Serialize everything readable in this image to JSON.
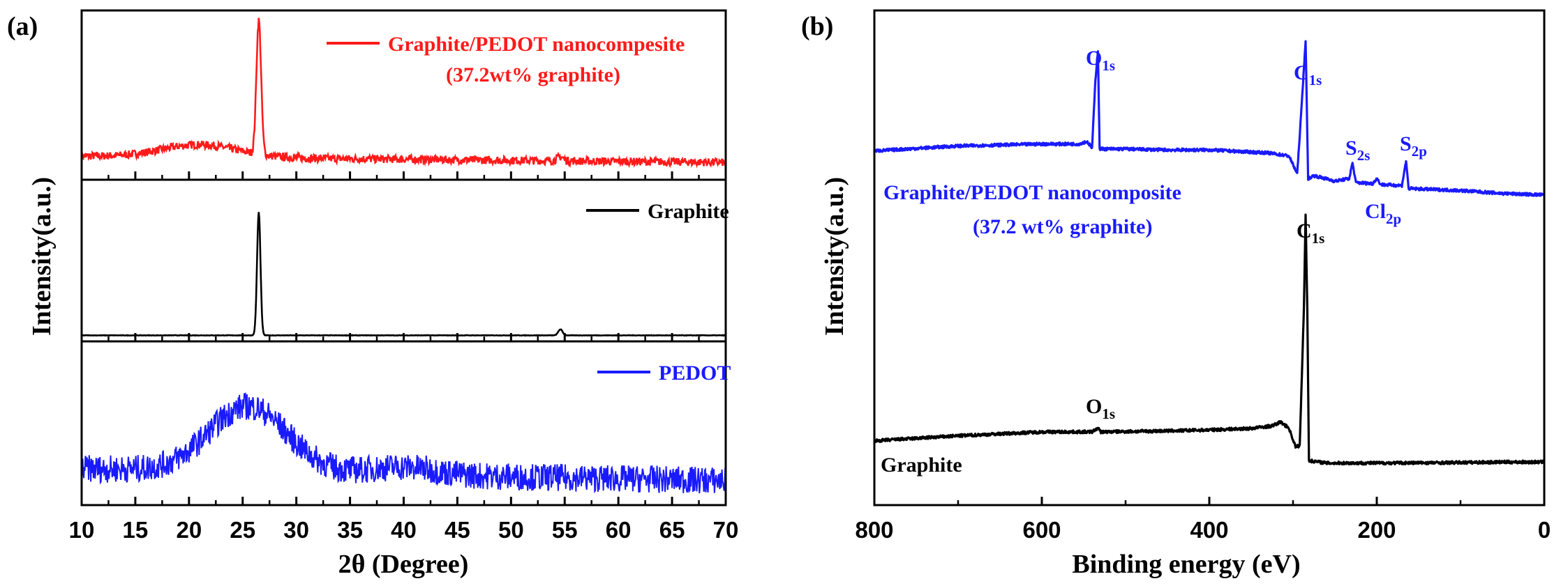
{
  "chart_data": [
    {
      "panel_label": "(a)",
      "type": "line",
      "xlabel": "2θ (Degree)",
      "ylabel": "Intensity(a.u.)",
      "xlim": [
        10,
        70
      ],
      "xticks": [
        10,
        15,
        20,
        25,
        30,
        35,
        40,
        45,
        50,
        55,
        60,
        65,
        70
      ],
      "stacked_subplots": 3,
      "series": [
        {
          "name": "Graphite/PEDOT nanocompesite",
          "legend_line2": "(37.2wt% graphite)",
          "color": "#ff1a1a",
          "subplot": 0,
          "baseline": 0.15,
          "slope": -0.04,
          "noise": 0.025,
          "peaks": [
            [
              21,
              0.08,
              3.5
            ],
            [
              26.5,
              0.85,
              0.22
            ],
            [
              54.6,
              0.025,
              0.3
            ]
          ],
          "x": [
            10,
            20,
            25,
            26.5,
            28,
            35,
            54.6,
            70
          ],
          "y": [
            0.16,
            0.2,
            0.22,
            1.0,
            0.15,
            0.14,
            0.14,
            0.12
          ]
        },
        {
          "name": "Graphite",
          "color": "#000000",
          "subplot": 1,
          "baseline": 0.04,
          "slope": 0,
          "noise": 0.0015,
          "peaks": [
            [
              26.5,
              0.82,
              0.16
            ],
            [
              54.6,
              0.04,
              0.2
            ]
          ],
          "x": [
            10,
            26.5,
            54.6,
            70
          ],
          "y": [
            0.04,
            0.86,
            0.08,
            0.04
          ]
        },
        {
          "name": "PEDOT",
          "color": "#1a1aff",
          "subplot": 2,
          "baseline": 0.24,
          "slope": -0.08,
          "noise": 0.09,
          "peaks": [
            [
              25.5,
              0.43,
              3.6
            ],
            [
              40,
              0.05,
              3
            ]
          ],
          "x": [
            10,
            20,
            25.5,
            30,
            40,
            50,
            60,
            70
          ],
          "y": [
            0.26,
            0.38,
            0.66,
            0.4,
            0.26,
            0.24,
            0.2,
            0.16
          ]
        }
      ]
    },
    {
      "panel_label": "(b)",
      "type": "line",
      "xlabel": "Binding energy (eV)",
      "ylabel": "Intensity(a.u.)",
      "xlim": [
        800,
        0
      ],
      "xticks": [
        800,
        600,
        400,
        200,
        0
      ],
      "series": [
        {
          "name": "Graphite/PEDOT nanocomposite",
          "legend_line2": "(37.2 wt% graphite)",
          "color": "#1a1aff",
          "ylim": [
            0,
            1
          ],
          "points": [
            [
              800,
              0.716
            ],
            [
              700,
              0.726
            ],
            [
              600,
              0.73
            ],
            [
              556,
              0.73
            ],
            [
              546,
              0.735
            ],
            [
              540,
              0.722
            ],
            [
              536,
              0.86
            ],
            [
              533,
              0.92
            ],
            [
              531,
              0.72
            ],
            [
              500,
              0.72
            ],
            [
              450,
              0.718
            ],
            [
              400,
              0.718
            ],
            [
              330,
              0.712
            ],
            [
              305,
              0.706
            ],
            [
              295,
              0.67
            ],
            [
              290,
              0.8
            ],
            [
              285,
              0.94
            ],
            [
              282,
              0.66
            ],
            [
              275,
              0.666
            ],
            [
              250,
              0.655
            ],
            [
              233,
              0.66
            ],
            [
              229,
              0.692
            ],
            [
              225,
              0.652
            ],
            [
              205,
              0.65
            ],
            [
              200,
              0.66
            ],
            [
              195,
              0.648
            ],
            [
              170,
              0.646
            ],
            [
              165,
              0.696
            ],
            [
              162,
              0.64
            ],
            [
              100,
              0.636
            ],
            [
              50,
              0.63
            ],
            [
              0,
              0.627
            ]
          ],
          "peak_labels": [
            {
              "main": "O",
              "sub": "1s",
              "x": 533
            },
            {
              "main": "C",
              "sub": "1s",
              "x": 285
            },
            {
              "main": "S",
              "sub": "2s",
              "x": 229
            },
            {
              "main": "S",
              "sub": "2p",
              "x": 165
            },
            {
              "main": "Cl",
              "sub": "2p",
              "x": 200
            }
          ]
        },
        {
          "name": "Graphite",
          "color": "#000000",
          "points": [
            [
              800,
              0.13
            ],
            [
              700,
              0.14
            ],
            [
              600,
              0.148
            ],
            [
              540,
              0.148
            ],
            [
              533,
              0.156
            ],
            [
              530,
              0.148
            ],
            [
              450,
              0.15
            ],
            [
              400,
              0.152
            ],
            [
              350,
              0.155
            ],
            [
              325,
              0.16
            ],
            [
              315,
              0.168
            ],
            [
              305,
              0.156
            ],
            [
              297,
              0.118
            ],
            [
              292,
              0.12
            ],
            [
              287,
              0.4
            ],
            [
              285,
              0.59
            ],
            [
              283,
              0.4
            ],
            [
              281,
              0.09
            ],
            [
              260,
              0.085
            ],
            [
              200,
              0.085
            ],
            [
              100,
              0.086
            ],
            [
              50,
              0.087
            ],
            [
              0,
              0.087
            ]
          ],
          "peak_labels": [
            {
              "main": "O",
              "sub": "1s",
              "x": 533
            },
            {
              "main": "C",
              "sub": "1s",
              "x": 285
            }
          ]
        }
      ]
    }
  ]
}
